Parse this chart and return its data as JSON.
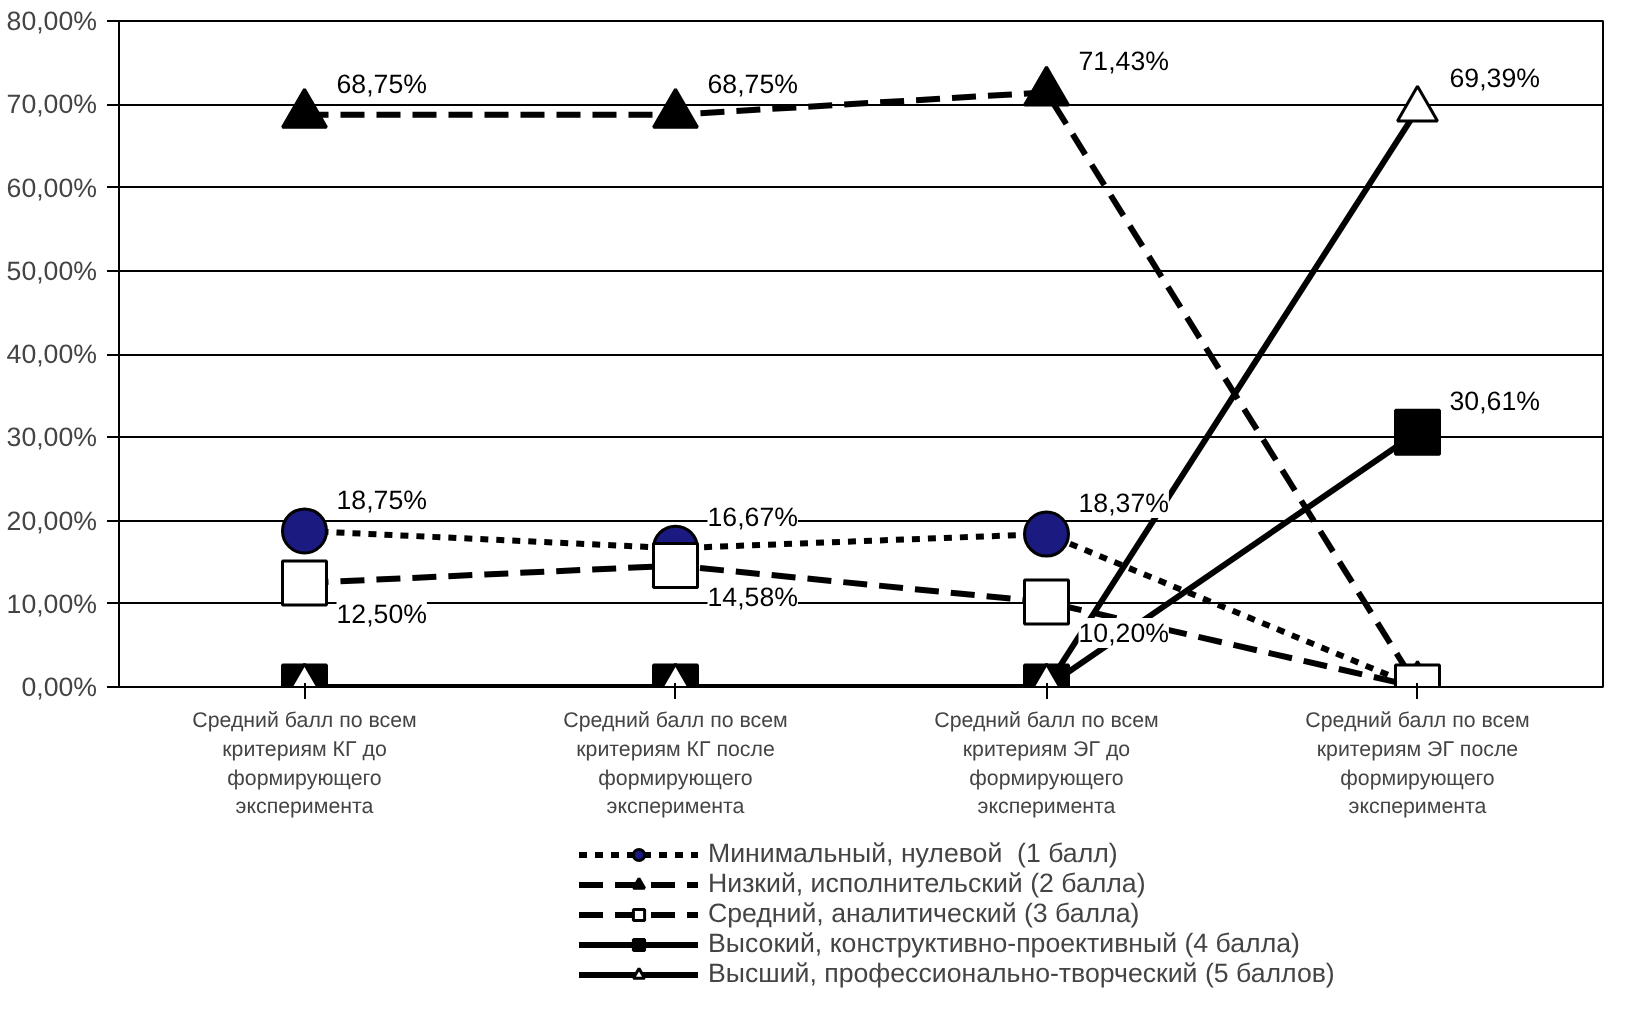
{
  "chart_data": {
    "type": "line",
    "categories": [
      "Средний балл по всем\nкритериям КГ до\nформирующего\nэксперимента",
      "Средний балл по всем\nкритериям КГ после\nформирующего\nэксперимента",
      "Средний балл по всем\nкритериям ЭГ до\nформирующего\nэксперимента",
      "Средний балл по всем\nкритериям ЭГ после\nформирующего\nэксперимента"
    ],
    "series": [
      {
        "name": "Минимальный, нулевой  (1 балл)",
        "color": "#000000",
        "colors": [
          "#1a1a80",
          "#1a1a80",
          "#1a1a80",
          "#1a1a80"
        ],
        "marker": "circle",
        "line_style": "dotted",
        "values": [
          18.75,
          16.67,
          18.37,
          0
        ],
        "value_labels": [
          "18,75%",
          "16,67%",
          "18,37%",
          null
        ]
      },
      {
        "name": "Низкий, исполнительский (2 балла)",
        "color": "#000000",
        "colors": [
          "#000000",
          "#000000",
          "#000000",
          "#000000"
        ],
        "marker": "triangle",
        "line_style": "dashed",
        "values": [
          68.75,
          68.75,
          71.43,
          0
        ],
        "value_labels": [
          "68,75%",
          "68,75%",
          "71,43%",
          null
        ]
      },
      {
        "name": "Средний, аналитический (3 балла)",
        "color": "#000000",
        "colors": [
          "#ffffff",
          "#ffffff",
          "#ffffff",
          "#ffffff"
        ],
        "marker": "square",
        "line_style": "dashed",
        "values": [
          12.5,
          14.58,
          10.2,
          0
        ],
        "value_labels": [
          "12,50%",
          "14,58%",
          "10,20%",
          null
        ]
      },
      {
        "name": "Высокий, конструктивно-проективный (4 балла)",
        "color": "#000000",
        "colors": [
          "#000000",
          "#000000",
          "#000000",
          "#000000"
        ],
        "marker": "square",
        "line_style": "solid",
        "values": [
          0,
          0,
          0,
          30.61
        ],
        "value_labels": [
          null,
          null,
          null,
          "30,61%"
        ]
      },
      {
        "name": "Высший, профессионально-творческий (5 баллов)",
        "color": "#000000",
        "colors": [
          "#ffffff",
          "#ffffff",
          "#ffffff",
          "#ffffff"
        ],
        "marker": "triangle",
        "line_style": "solid",
        "values": [
          0,
          0,
          0,
          69.39
        ],
        "value_labels": [
          null,
          null,
          null,
          "69,39%"
        ]
      }
    ],
    "ylim": [
      0,
      80
    ],
    "yticks": [
      {
        "value": 0,
        "label": "0,00%"
      },
      {
        "value": 10,
        "label": "10,00%"
      },
      {
        "value": 20,
        "label": "20,00%"
      },
      {
        "value": 30,
        "label": "30,00%"
      },
      {
        "value": 40,
        "label": "40,00%"
      },
      {
        "value": 50,
        "label": "50,00%"
      },
      {
        "value": 60,
        "label": "60,00%"
      },
      {
        "value": 70,
        "label": "70,00%"
      },
      {
        "value": 80,
        "label": "80,00%"
      }
    ],
    "grid": "y",
    "legend": "bottom"
  }
}
